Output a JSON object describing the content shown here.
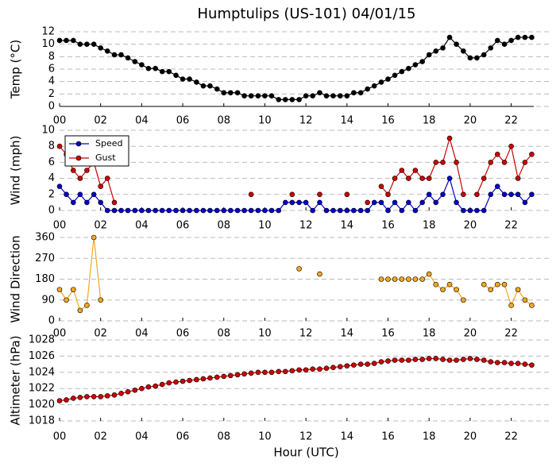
{
  "chart_data": [
    {
      "type": "line",
      "title": "Humptulips (US-101) 04/01/15",
      "ylabel": "Temp (°C)",
      "x": [
        0,
        0.33,
        0.67,
        1,
        1.33,
        1.67,
        2,
        2.33,
        2.67,
        3,
        3.33,
        3.67,
        4,
        4.33,
        4.67,
        5,
        5.33,
        5.67,
        6,
        6.33,
        6.67,
        7,
        7.33,
        7.67,
        8,
        8.33,
        8.67,
        9,
        9.33,
        9.67,
        10,
        10.33,
        10.67,
        11,
        11.33,
        11.67,
        12,
        12.33,
        12.67,
        13,
        13.33,
        13.67,
        14,
        14.33,
        14.67,
        15,
        15.33,
        15.67,
        16,
        16.33,
        16.67,
        17,
        17.33,
        17.67,
        18,
        18.33,
        18.67,
        19,
        19.33,
        19.67,
        20,
        20.33,
        20.67,
        21,
        21.33,
        21.67,
        22,
        22.33,
        22.67,
        23
      ],
      "series": [
        {
          "name": "Temp",
          "color": "#000000",
          "values": [
            10.6,
            10.6,
            10.6,
            10,
            10,
            10,
            9.4,
            8.9,
            8.3,
            8.3,
            7.8,
            7.2,
            6.7,
            6.1,
            6.1,
            5.6,
            5.6,
            5,
            4.4,
            4.4,
            3.9,
            3.3,
            3.3,
            2.8,
            2.2,
            2.2,
            2.2,
            1.7,
            1.7,
            1.7,
            1.7,
            1.7,
            1.1,
            1.1,
            1.1,
            1.1,
            1.7,
            1.7,
            2.2,
            1.7,
            1.7,
            1.7,
            1.7,
            2.2,
            2.2,
            2.8,
            3.3,
            3.9,
            4.4,
            5,
            5.6,
            6.1,
            6.7,
            7.2,
            8.3,
            8.9,
            9.4,
            11.1,
            10,
            8.9,
            7.8,
            7.8,
            8.3,
            9.4,
            10.6,
            10,
            10.6,
            11.1,
            11.1,
            11.1
          ]
        }
      ],
      "xlim": [
        0,
        23.1
      ],
      "xticks": [
        {
          "value": 0,
          "label": "00"
        },
        {
          "value": 2,
          "label": "02"
        },
        {
          "value": 4,
          "label": "04"
        },
        {
          "value": 6,
          "label": "06"
        },
        {
          "value": 8,
          "label": "08"
        },
        {
          "value": 10,
          "label": "10"
        },
        {
          "value": 12,
          "label": "12"
        },
        {
          "value": 14,
          "label": "14"
        },
        {
          "value": 16,
          "label": "16"
        },
        {
          "value": 18,
          "label": "18"
        },
        {
          "value": 20,
          "label": "20"
        },
        {
          "value": 22,
          "label": "22"
        }
      ],
      "ylim": [
        0,
        12
      ],
      "yticks": [
        0,
        2,
        4,
        6,
        8,
        10,
        12
      ],
      "grid": true
    },
    {
      "type": "line",
      "ylabel": "Wind (mph)",
      "legend": "upper left",
      "x": [
        0,
        0.33,
        0.67,
        1,
        1.33,
        1.67,
        2,
        2.33,
        2.67,
        3,
        3.33,
        3.67,
        4,
        4.33,
        4.67,
        5,
        5.33,
        5.67,
        6,
        6.33,
        6.67,
        7,
        7.33,
        7.67,
        8,
        8.33,
        8.67,
        9,
        9.33,
        9.67,
        10,
        10.33,
        10.67,
        11,
        11.33,
        11.67,
        12,
        12.33,
        12.67,
        13,
        13.33,
        13.67,
        14,
        14.33,
        14.67,
        15,
        15.33,
        15.67,
        16,
        16.33,
        16.67,
        17,
        17.33,
        17.67,
        18,
        18.33,
        18.67,
        19,
        19.33,
        19.67,
        20,
        20.33,
        20.67,
        21,
        21.33,
        21.67,
        22,
        22.33,
        22.67,
        23
      ],
      "series": [
        {
          "name": "Speed",
          "color": "#0000cc",
          "values": [
            3,
            2,
            1,
            2,
            1,
            2,
            1,
            0,
            0,
            0,
            0,
            0,
            0,
            0,
            0,
            0,
            0,
            0,
            0,
            0,
            0,
            0,
            0,
            0,
            0,
            0,
            0,
            0,
            0,
            0,
            0,
            0,
            0,
            1,
            1,
            1,
            1,
            0,
            1,
            0,
            0,
            0,
            0,
            0,
            0,
            0,
            1,
            1,
            0,
            1,
            0,
            1,
            0,
            1,
            2,
            1,
            2,
            4,
            1,
            0,
            0,
            0,
            0,
            2,
            3,
            2,
            2,
            2,
            1,
            2
          ]
        },
        {
          "name": "Gust",
          "color": "#cc0000",
          "values": [
            8,
            7,
            5,
            4,
            5,
            6,
            3,
            4,
            1,
            null,
            null,
            null,
            null,
            null,
            null,
            null,
            null,
            null,
            null,
            null,
            null,
            null,
            null,
            null,
            null,
            null,
            null,
            null,
            2,
            null,
            null,
            null,
            null,
            null,
            2,
            null,
            null,
            null,
            2,
            null,
            null,
            null,
            2,
            null,
            null,
            1,
            null,
            3,
            2,
            4,
            5,
            4,
            5,
            4,
            4,
            6,
            6,
            9,
            6,
            2,
            null,
            2,
            4,
            6,
            7,
            6,
            8,
            4,
            6,
            7
          ]
        }
      ],
      "xlim": [
        0,
        23.1
      ],
      "xticks": [
        {
          "value": 0,
          "label": "00"
        },
        {
          "value": 2,
          "label": "02"
        },
        {
          "value": 4,
          "label": "04"
        },
        {
          "value": 6,
          "label": "06"
        },
        {
          "value": 8,
          "label": "08"
        },
        {
          "value": 10,
          "label": "10"
        },
        {
          "value": 12,
          "label": "12"
        },
        {
          "value": 14,
          "label": "14"
        },
        {
          "value": 16,
          "label": "16"
        },
        {
          "value": 18,
          "label": "18"
        },
        {
          "value": 20,
          "label": "20"
        },
        {
          "value": 22,
          "label": "22"
        }
      ],
      "ylim": [
        0,
        10
      ],
      "yticks": [
        0,
        2,
        4,
        6,
        8,
        10
      ],
      "grid": true
    },
    {
      "type": "line",
      "ylabel": "Wind Direction",
      "x": [
        0,
        0.33,
        0.67,
        1,
        1.33,
        1.67,
        2,
        2.33,
        2.67,
        3,
        3.33,
        3.67,
        4,
        4.33,
        4.67,
        5,
        5.33,
        5.67,
        6,
        6.33,
        6.67,
        7,
        7.33,
        7.67,
        8,
        8.33,
        8.67,
        9,
        9.33,
        9.67,
        10,
        10.33,
        10.67,
        11,
        11.33,
        11.67,
        12,
        12.33,
        12.67,
        13,
        13.33,
        13.67,
        14,
        14.33,
        14.67,
        15,
        15.33,
        15.67,
        16,
        16.33,
        16.67,
        17,
        17.33,
        17.67,
        18,
        18.33,
        18.67,
        19,
        19.33,
        19.67,
        20,
        20.33,
        20.67,
        21,
        21.33,
        21.67,
        22,
        22.33,
        22.67,
        23
      ],
      "series": [
        {
          "name": "Direction",
          "color": "#f5a623",
          "values": [
            135,
            90,
            135,
            45,
            67,
            360,
            90,
            null,
            null,
            null,
            null,
            null,
            null,
            null,
            null,
            null,
            null,
            null,
            null,
            null,
            null,
            null,
            null,
            null,
            null,
            null,
            null,
            null,
            null,
            null,
            null,
            null,
            null,
            null,
            null,
            225,
            null,
            null,
            202,
            null,
            null,
            null,
            null,
            null,
            null,
            null,
            null,
            180,
            180,
            180,
            180,
            180,
            180,
            180,
            202,
            157,
            135,
            157,
            135,
            90,
            null,
            null,
            157,
            135,
            157,
            157,
            67,
            135,
            90,
            67
          ]
        }
      ],
      "xlim": [
        0,
        23.1
      ],
      "xticks": [
        {
          "value": 0,
          "label": "00"
        },
        {
          "value": 2,
          "label": "02"
        },
        {
          "value": 4,
          "label": "04"
        },
        {
          "value": 6,
          "label": "06"
        },
        {
          "value": 8,
          "label": "08"
        },
        {
          "value": 10,
          "label": "10"
        },
        {
          "value": 12,
          "label": "12"
        },
        {
          "value": 14,
          "label": "14"
        },
        {
          "value": 16,
          "label": "16"
        },
        {
          "value": 18,
          "label": "18"
        },
        {
          "value": 20,
          "label": "20"
        },
        {
          "value": 22,
          "label": "22"
        }
      ],
      "ylim": [
        0,
        360
      ],
      "yticks": [
        0,
        90,
        180,
        270,
        360
      ],
      "grid": true
    },
    {
      "type": "line",
      "ylabel": "Altimeter (hPa)",
      "xlabel": "Hour (UTC)",
      "x": [
        0,
        0.33,
        0.67,
        1,
        1.33,
        1.67,
        2,
        2.33,
        2.67,
        3,
        3.33,
        3.67,
        4,
        4.33,
        4.67,
        5,
        5.33,
        5.67,
        6,
        6.33,
        6.67,
        7,
        7.33,
        7.67,
        8,
        8.33,
        8.67,
        9,
        9.33,
        9.67,
        10,
        10.33,
        10.67,
        11,
        11.33,
        11.67,
        12,
        12.33,
        12.67,
        13,
        13.33,
        13.67,
        14,
        14.33,
        14.67,
        15,
        15.33,
        15.67,
        16,
        16.33,
        16.67,
        17,
        17.33,
        17.67,
        18,
        18.33,
        18.67,
        19,
        19.33,
        19.67,
        20,
        20.33,
        20.67,
        21,
        21.33,
        21.67,
        22,
        22.33,
        22.67,
        23
      ],
      "series": [
        {
          "name": "Altimeter",
          "color": "#cc0000",
          "values": [
            1020.5,
            1020.6,
            1020.8,
            1020.9,
            1021,
            1021,
            1021,
            1021.1,
            1021.2,
            1021.4,
            1021.6,
            1021.8,
            1022,
            1022.2,
            1022.3,
            1022.5,
            1022.7,
            1022.8,
            1022.9,
            1023,
            1023.1,
            1023.2,
            1023.3,
            1023.4,
            1023.5,
            1023.6,
            1023.7,
            1023.8,
            1023.9,
            1024,
            1024,
            1024,
            1024.1,
            1024.1,
            1024.2,
            1024.3,
            1024.3,
            1024.4,
            1024.4,
            1024.5,
            1024.6,
            1024.7,
            1024.8,
            1024.9,
            1025,
            1025,
            1025.1,
            1025.3,
            1025.4,
            1025.5,
            1025.5,
            1025.5,
            1025.6,
            1025.6,
            1025.7,
            1025.7,
            1025.6,
            1025.5,
            1025.5,
            1025.6,
            1025.7,
            1025.6,
            1025.5,
            1025.3,
            1025.2,
            1025.2,
            1025.1,
            1025.1,
            1025,
            1024.9
          ]
        }
      ],
      "xlim": [
        0,
        23.1
      ],
      "xticks": [
        {
          "value": 0,
          "label": "00"
        },
        {
          "value": 2,
          "label": "02"
        },
        {
          "value": 4,
          "label": "04"
        },
        {
          "value": 6,
          "label": "06"
        },
        {
          "value": 8,
          "label": "08"
        },
        {
          "value": 10,
          "label": "10"
        },
        {
          "value": 12,
          "label": "12"
        },
        {
          "value": 14,
          "label": "14"
        },
        {
          "value": 16,
          "label": "16"
        },
        {
          "value": 18,
          "label": "18"
        },
        {
          "value": 20,
          "label": "20"
        },
        {
          "value": 22,
          "label": "22"
        }
      ],
      "ylim": [
        1018,
        1028
      ],
      "yticks": [
        1018,
        1020,
        1022,
        1024,
        1026,
        1028
      ],
      "grid": true
    }
  ]
}
